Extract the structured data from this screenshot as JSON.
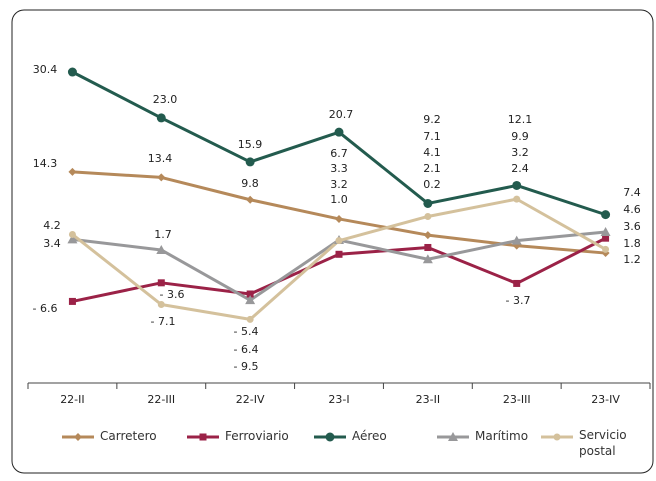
{
  "chart_data": {
    "type": "line",
    "categories": [
      "22-II",
      "22-III",
      "22-IV",
      "23-I",
      "23-II",
      "23-III",
      "23-IV"
    ],
    "ylim": [
      -15,
      35
    ],
    "legend": "bottom",
    "series": [
      {
        "name": "Carretero",
        "color": "#b5895a",
        "marker": "diamond",
        "values": [
          14.3,
          13.4,
          9.8,
          6.7,
          4.1,
          2.4,
          1.2
        ],
        "value_labels": [
          "14.3",
          "13.4",
          "9.8",
          "6.7",
          "4.1",
          "2.4",
          "1.2"
        ]
      },
      {
        "name": "Ferroviario",
        "color": "#9b2247",
        "marker": "square",
        "values": [
          -6.6,
          -3.6,
          -5.4,
          1.0,
          2.1,
          -3.7,
          3.6
        ],
        "value_labels": [
          "- 6.6",
          "- 3.6",
          "- 5.4",
          "1.0",
          "2.1",
          "- 3.7",
          "3.6"
        ]
      },
      {
        "name": "Aéreo",
        "color": "#235b4e",
        "marker": "circle",
        "values": [
          30.4,
          23.0,
          15.9,
          20.7,
          9.2,
          12.1,
          7.4
        ],
        "value_labels": [
          "30.4",
          "23.0",
          "15.9",
          "20.7",
          "9.2",
          "12.1",
          "7.4"
        ]
      },
      {
        "name": "Marítimo",
        "color": "#98989a",
        "marker": "triangle",
        "values": [
          3.4,
          1.7,
          -6.4,
          3.3,
          0.2,
          3.2,
          4.6
        ],
        "value_labels": [
          "3.4",
          "1.7",
          "- 6.4",
          "3.3",
          "0.2",
          "3.2",
          "4.6"
        ]
      },
      {
        "name": "Servicio postal",
        "color": "#d4c19c",
        "marker": "dot",
        "values": [
          4.2,
          -7.1,
          -9.5,
          3.2,
          7.1,
          9.9,
          1.8
        ],
        "value_labels": [
          "4.2",
          "- 7.1",
          "- 9.5",
          "3.2",
          "7.1",
          "9.9",
          "1.8"
        ]
      }
    ]
  }
}
